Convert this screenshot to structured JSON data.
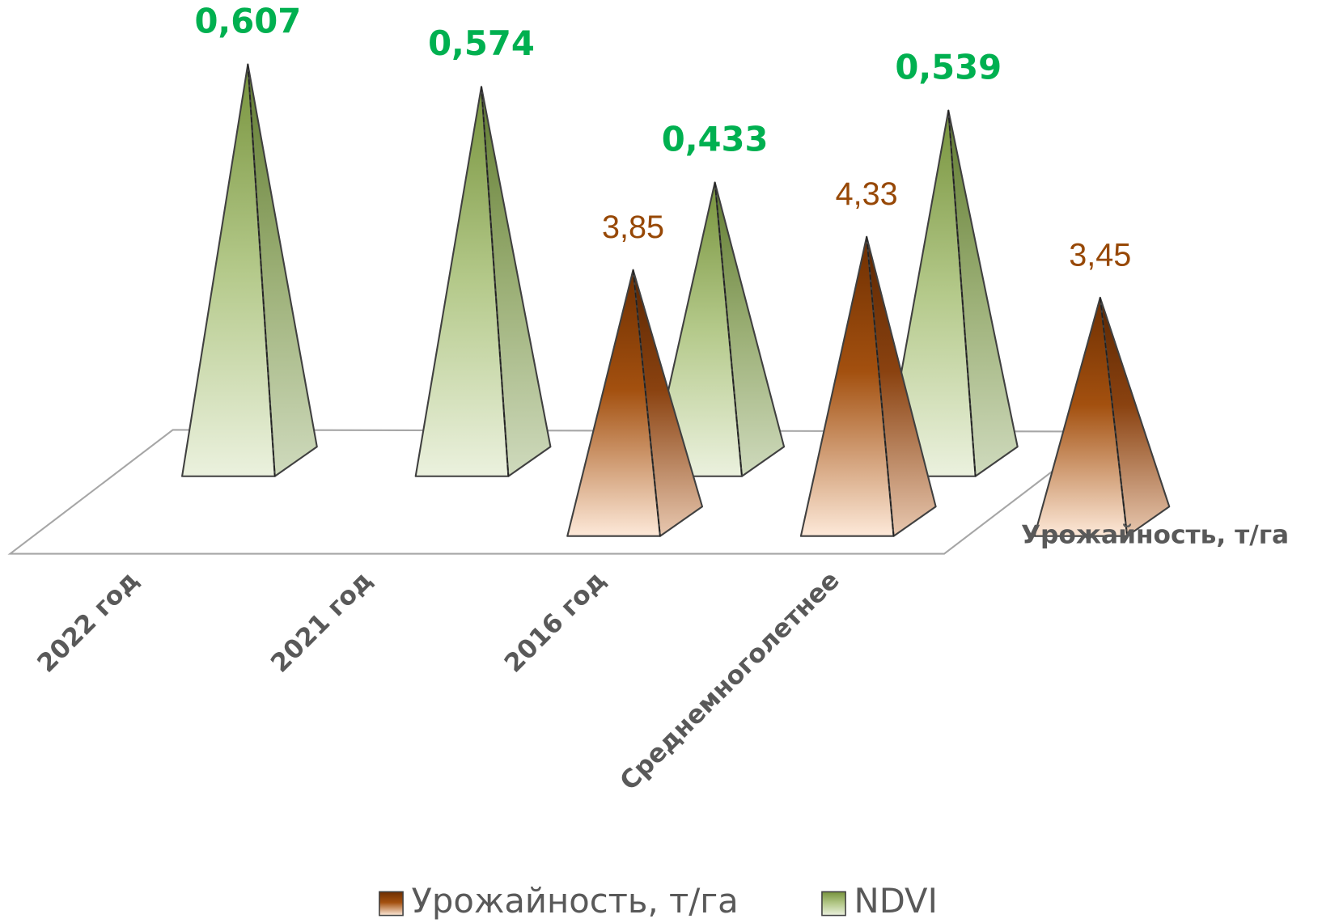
{
  "chart_data": {
    "type": "pyramid3d",
    "categories": [
      "2022 год",
      "2021 год",
      "2016 год",
      "Среднемноголетнее"
    ],
    "series": [
      {
        "name": "Урожайность, т/га",
        "color": "#984807",
        "values": [
          null,
          3.85,
          4.33,
          3.45
        ],
        "value_labels": [
          null,
          "3,85",
          "4,33",
          "3,45"
        ]
      },
      {
        "name": "NDVI",
        "color": "#77933c",
        "values": [
          0.607,
          0.574,
          0.433,
          0.539
        ],
        "value_labels": [
          "0,607",
          "0,574",
          "0,433",
          "0,539"
        ]
      }
    ],
    "legend": "bottom"
  }
}
